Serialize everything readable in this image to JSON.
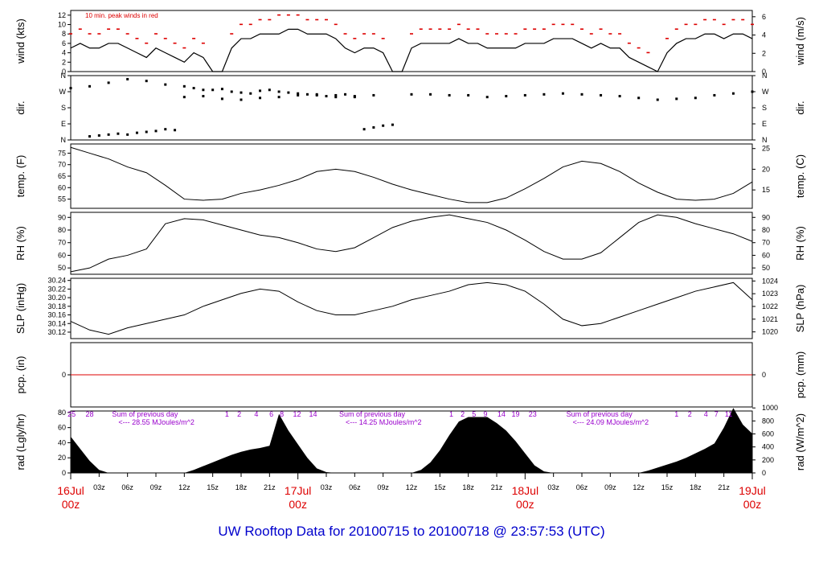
{
  "title": "UW Rooftop Data for 20100715  to  20100718 @ 23:57:53  (UTC)",
  "colors": {
    "trace": "#000000",
    "peak": "#dd0000",
    "zero_line": "#dd0000",
    "day_label": "#dd0000",
    "solar_text": "#9900cc",
    "footer": "#0000cc"
  },
  "chart_data": [
    {
      "type": "line",
      "panel": "wind",
      "ylabel_left": "wind (kts)",
      "ylabel_right": "wind (m/s)",
      "yticks_left": [
        "0",
        "2",
        "4",
        "6",
        "8",
        "10",
        "12"
      ],
      "yticks_right": [
        "0",
        "2",
        "4",
        "6"
      ],
      "ylim": [
        0,
        13
      ],
      "annotation": "10 min. peak winds in red",
      "series": [
        {
          "name": "wind",
          "x": [
            0,
            1,
            2,
            3,
            4,
            5,
            6,
            7,
            8,
            9,
            10,
            11,
            12,
            13,
            14,
            15,
            16,
            17,
            18,
            19,
            20,
            21,
            22,
            23,
            24,
            25,
            26,
            27,
            28,
            29,
            30,
            31,
            32,
            33,
            34,
            35,
            36,
            37,
            38,
            39,
            40,
            41,
            42,
            43,
            44,
            45,
            46,
            47,
            48,
            49,
            50,
            51,
            52,
            53,
            54,
            55,
            56,
            57,
            58,
            59,
            60,
            61,
            62,
            63,
            64,
            65,
            66,
            67,
            68,
            69,
            70,
            71,
            72
          ],
          "y": [
            5,
            6,
            5,
            5,
            6,
            6,
            5,
            4,
            3,
            5,
            4,
            3,
            2,
            4,
            3,
            0,
            0,
            5,
            7,
            7,
            8,
            8,
            8,
            9,
            9,
            8,
            8,
            8,
            7,
            5,
            4,
            5,
            5,
            4,
            0,
            0,
            5,
            6,
            6,
            6,
            6,
            7,
            6,
            6,
            5,
            5,
            5,
            5,
            6,
            6,
            6,
            7,
            7,
            7,
            6,
            5,
            6,
            5,
            5,
            3,
            2,
            1,
            0,
            4,
            6,
            7,
            7,
            8,
            8,
            7,
            8,
            8,
            7
          ]
        },
        {
          "name": "10 min. peak winds",
          "x": [
            0,
            1,
            2,
            3,
            4,
            5,
            6,
            7,
            8,
            9,
            10,
            11,
            12,
            13,
            14,
            15,
            16,
            17,
            18,
            19,
            20,
            21,
            22,
            23,
            24,
            25,
            26,
            27,
            28,
            29,
            30,
            31,
            32,
            33,
            34,
            35,
            36,
            37,
            38,
            39,
            40,
            41,
            42,
            43,
            44,
            45,
            46,
            47,
            48,
            49,
            50,
            51,
            52,
            53,
            54,
            55,
            56,
            57,
            58,
            59,
            60,
            61,
            62,
            63,
            64,
            65,
            66,
            67,
            68,
            69,
            70,
            71,
            72
          ],
          "y": [
            8,
            9,
            8,
            8,
            9,
            9,
            8,
            7,
            6,
            8,
            7,
            6,
            5,
            7,
            6,
            0,
            0,
            8,
            10,
            10,
            11,
            11,
            12,
            12,
            12,
            11,
            11,
            11,
            10,
            8,
            7,
            8,
            8,
            7,
            0,
            0,
            8,
            9,
            9,
            9,
            9,
            10,
            9,
            9,
            8,
            8,
            8,
            8,
            9,
            9,
            9,
            10,
            10,
            10,
            9,
            8,
            9,
            8,
            8,
            6,
            5,
            4,
            0,
            7,
            9,
            10,
            10,
            11,
            11,
            10,
            11,
            11,
            10
          ]
        }
      ]
    },
    {
      "type": "scatter",
      "panel": "dir",
      "ylabel_left": "dir.",
      "ylabel_right": "dir.",
      "yticks_left": [
        "N",
        "E",
        "S",
        "W",
        "N"
      ],
      "yticks_right": [
        "N",
        "E",
        "S",
        "W",
        "N"
      ],
      "ylim": [
        0,
        360
      ],
      "series": [
        {
          "name": "main",
          "x": [
            0,
            2,
            4,
            6,
            8,
            10,
            12,
            14,
            16,
            18,
            20,
            22,
            24,
            26,
            28,
            30,
            32,
            36,
            38,
            40,
            42,
            44,
            46,
            48,
            50,
            52,
            54,
            56,
            58,
            60,
            62,
            64,
            66,
            68,
            70,
            72
          ],
          "y": [
            290,
            300,
            320,
            340,
            330,
            310,
            240,
            245,
            230,
            225,
            235,
            240,
            250,
            255,
            240,
            245,
            250,
            255,
            255,
            250,
            250,
            240,
            245,
            250,
            255,
            260,
            255,
            250,
            245,
            235,
            225,
            230,
            235,
            250,
            260,
            270
          ]
        },
        {
          "name": "alt",
          "x": [
            2,
            3,
            4,
            5,
            6,
            7,
            8,
            9,
            10,
            11,
            12,
            13,
            14,
            15,
            16,
            17,
            18,
            19,
            20,
            21,
            22,
            23,
            24,
            25,
            26,
            27,
            28,
            29,
            30,
            31,
            32,
            33,
            34
          ],
          "y": [
            20,
            25,
            30,
            35,
            30,
            40,
            45,
            50,
            60,
            55,
            300,
            290,
            280,
            280,
            285,
            270,
            265,
            260,
            275,
            280,
            270,
            265,
            260,
            255,
            250,
            245,
            250,
            255,
            240,
            60,
            70,
            80,
            85
          ]
        }
      ]
    },
    {
      "type": "line",
      "panel": "temp",
      "ylabel_left": "temp. (F)",
      "ylabel_right": "temp. (C)",
      "yticks_left": [
        "55",
        "60",
        "65",
        "70",
        "75"
      ],
      "yticks_right": [
        "15",
        "20",
        "25"
      ],
      "ylim": [
        51,
        79
      ],
      "series": [
        {
          "name": "temperature",
          "x": [
            0,
            2,
            4,
            6,
            8,
            10,
            12,
            14,
            16,
            18,
            20,
            22,
            24,
            26,
            28,
            30,
            32,
            34,
            36,
            38,
            40,
            42,
            44,
            46,
            48,
            50,
            52,
            54,
            56,
            58,
            60,
            62,
            64,
            66,
            68,
            70,
            72
          ],
          "y": [
            77.5,
            75,
            72.5,
            69,
            66.5,
            61,
            55,
            54.5,
            55,
            57.5,
            59,
            61,
            63.5,
            67,
            68,
            67,
            64.5,
            61.5,
            59,
            57,
            55,
            53.5,
            53.5,
            55.5,
            59.5,
            64,
            69,
            71.5,
            70.5,
            67,
            62,
            58,
            55,
            54.5,
            55,
            57.5,
            62.5
          ]
        }
      ]
    },
    {
      "type": "line",
      "panel": "rh",
      "ylabel_left": "RH (%)",
      "ylabel_right": "RH (%)",
      "yticks_left": [
        "50",
        "60",
        "70",
        "80",
        "90"
      ],
      "yticks_right": [
        "50",
        "60",
        "70",
        "80",
        "90"
      ],
      "ylim": [
        45,
        94
      ],
      "series": [
        {
          "name": "relative humidity",
          "x": [
            0,
            2,
            4,
            6,
            8,
            10,
            12,
            14,
            16,
            18,
            20,
            22,
            24,
            26,
            28,
            30,
            32,
            34,
            36,
            38,
            40,
            42,
            44,
            46,
            48,
            50,
            52,
            54,
            56,
            58,
            60,
            62,
            64,
            66,
            68,
            70,
            72
          ],
          "y": [
            47,
            50,
            57,
            60,
            65,
            85,
            89,
            88,
            84,
            80,
            76,
            74,
            70,
            65,
            63,
            66,
            74,
            82,
            87,
            90,
            92,
            89,
            86,
            80,
            72,
            63,
            57,
            57,
            62,
            74,
            86,
            92,
            90,
            85,
            81,
            77,
            71
          ]
        }
      ]
    },
    {
      "type": "line",
      "panel": "slp",
      "ylabel_left": "SLP (inHg)",
      "ylabel_right": "SLP (hPa)",
      "yticks_left": [
        "30.12",
        "30.14",
        "30.16",
        "30.18",
        "30.20",
        "30.22",
        "30.24"
      ],
      "yticks_right": [
        "1020",
        "1021",
        "1022",
        "1023",
        "1024"
      ],
      "ylim": [
        30.105,
        30.245
      ],
      "series": [
        {
          "name": "sea level pressure",
          "x": [
            0,
            2,
            4,
            6,
            8,
            10,
            12,
            14,
            16,
            18,
            20,
            22,
            24,
            26,
            28,
            30,
            32,
            34,
            36,
            38,
            40,
            42,
            44,
            46,
            48,
            50,
            52,
            54,
            56,
            58,
            60,
            62,
            64,
            66,
            68,
            70,
            72
          ],
          "y": [
            30.145,
            30.125,
            30.115,
            30.13,
            30.14,
            30.15,
            30.16,
            30.18,
            30.195,
            30.21,
            30.22,
            30.215,
            30.19,
            30.17,
            30.16,
            30.16,
            30.17,
            30.18,
            30.195,
            30.205,
            30.215,
            30.23,
            30.235,
            30.23,
            30.215,
            30.185,
            30.15,
            30.135,
            30.14,
            30.155,
            30.17,
            30.185,
            30.2,
            30.215,
            30.225,
            30.235,
            30.195
          ]
        }
      ]
    },
    {
      "type": "line",
      "panel": "pcp",
      "ylabel_left": "pcp. (in)",
      "ylabel_right": "pcp. (mm)",
      "yticks_left": [
        "0"
      ],
      "yticks_right": [
        "0"
      ],
      "ylim": [
        -1,
        1
      ],
      "series": [
        {
          "name": "precipitation",
          "x": [
            0,
            72
          ],
          "y": [
            0,
            0
          ]
        }
      ]
    },
    {
      "type": "area",
      "panel": "rad",
      "ylabel_left": "rad (Lgly/hr)",
      "ylabel_right": "rad (W/m^2)",
      "yticks_left": [
        "0",
        "20",
        "40",
        "60",
        "80"
      ],
      "yticks_right": [
        "0",
        "200",
        "400",
        "600",
        "800",
        "1000"
      ],
      "ylim": [
        0,
        82
      ],
      "series": [
        {
          "name": "solar radiation",
          "x": [
            0,
            1,
            2,
            3,
            4,
            12,
            13,
            14,
            15,
            16,
            17,
            18,
            19,
            20,
            21,
            22,
            23,
            24,
            25,
            26,
            27,
            28,
            36,
            37,
            38,
            39,
            40,
            41,
            42,
            43,
            44,
            45,
            46,
            47,
            48,
            49,
            50,
            51,
            52,
            60,
            61,
            62,
            63,
            64,
            65,
            66,
            67,
            68,
            69,
            70,
            71,
            72
          ],
          "y": [
            48,
            32,
            16,
            4,
            0,
            0,
            4,
            9,
            14,
            19,
            24,
            28,
            31,
            33,
            36,
            78,
            56,
            38,
            20,
            6,
            1,
            0,
            0,
            4,
            14,
            30,
            50,
            68,
            74,
            74,
            74,
            66,
            56,
            42,
            26,
            10,
            2,
            0,
            0,
            0,
            3,
            7,
            11,
            15,
            20,
            26,
            32,
            39,
            60,
            86,
            64,
            52
          ]
        }
      ],
      "peak_hour_labels": [
        {
          "x": 0.1,
          "label": "25"
        },
        {
          "x": 2.0,
          "label": "28"
        },
        {
          "x": 16.5,
          "label": "1"
        },
        {
          "x": 17.8,
          "label": "2"
        },
        {
          "x": 19.6,
          "label": "4"
        },
        {
          "x": 21.2,
          "label": "6"
        },
        {
          "x": 22.3,
          "label": "8"
        },
        {
          "x": 23.9,
          "label": "12"
        },
        {
          "x": 25.6,
          "label": "14"
        },
        {
          "x": 40.2,
          "label": "1"
        },
        {
          "x": 41.4,
          "label": "2"
        },
        {
          "x": 42.6,
          "label": "5"
        },
        {
          "x": 43.8,
          "label": "9"
        },
        {
          "x": 45.5,
          "label": "14"
        },
        {
          "x": 47.0,
          "label": "19"
        },
        {
          "x": 48.8,
          "label": "23"
        },
        {
          "x": 64.0,
          "label": "1"
        },
        {
          "x": 65.4,
          "label": "2"
        },
        {
          "x": 67.1,
          "label": "4"
        },
        {
          "x": 68.2,
          "label": "7"
        },
        {
          "x": 69.5,
          "label": "11"
        }
      ],
      "sums": [
        {
          "x": 3,
          "line1": "Sum of previous day",
          "line2": "<--- 28.55 MJoules/m^2"
        },
        {
          "x": 27,
          "line1": "Sum of previous day",
          "line2": "<--- 14.25 MJoules/m^2"
        },
        {
          "x": 51,
          "line1": "Sum of previous day",
          "line2": "<--- 24.09 MJoules/m^2"
        }
      ]
    }
  ],
  "x_axis": {
    "range_hours": [
      0,
      72
    ],
    "hour_ticks": [
      {
        "x": 3,
        "label": "03z"
      },
      {
        "x": 6,
        "label": "06z"
      },
      {
        "x": 9,
        "label": "09z"
      },
      {
        "x": 12,
        "label": "12z"
      },
      {
        "x": 15,
        "label": "15z"
      },
      {
        "x": 18,
        "label": "18z"
      },
      {
        "x": 21,
        "label": "21z"
      },
      {
        "x": 27,
        "label": "03z"
      },
      {
        "x": 30,
        "label": "06z"
      },
      {
        "x": 33,
        "label": "09z"
      },
      {
        "x": 36,
        "label": "12z"
      },
      {
        "x": 39,
        "label": "15z"
      },
      {
        "x": 42,
        "label": "18z"
      },
      {
        "x": 45,
        "label": "21z"
      },
      {
        "x": 51,
        "label": "03z"
      },
      {
        "x": 54,
        "label": "06z"
      },
      {
        "x": 57,
        "label": "09z"
      },
      {
        "x": 60,
        "label": "12z"
      },
      {
        "x": 63,
        "label": "15z"
      },
      {
        "x": 66,
        "label": "18z"
      },
      {
        "x": 69,
        "label": "21z"
      }
    ],
    "day_ticks": [
      {
        "x": 0,
        "date": "16Jul",
        "time": "00z"
      },
      {
        "x": 24,
        "date": "17Jul",
        "time": "00z"
      },
      {
        "x": 48,
        "date": "18Jul",
        "time": "00z"
      },
      {
        "x": 72,
        "date": "19Jul",
        "time": "00z"
      }
    ]
  }
}
